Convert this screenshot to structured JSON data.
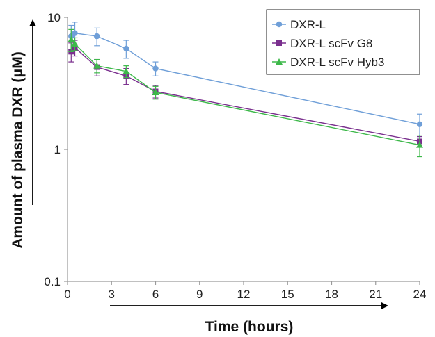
{
  "chart_data": {
    "type": "line",
    "xlabel": "Time (hours)",
    "ylabel": "Amount of plasma DXR (μM)",
    "y_scale": "log",
    "xlim": [
      0,
      24
    ],
    "ylim": [
      0.1,
      10
    ],
    "x_ticks": [
      0,
      3,
      6,
      9,
      12,
      15,
      18,
      21,
      24
    ],
    "x_tick_labels": [
      "0",
      "3",
      "6",
      "9",
      "12",
      "15",
      "18",
      "21",
      "24"
    ],
    "y_ticks": [
      0.1,
      1,
      10
    ],
    "y_tick_labels": [
      "0.1",
      "1",
      "10"
    ],
    "grid": false,
    "legend_position": "top-right",
    "series": [
      {
        "name": "DXR-L",
        "color": "#6f9fd8",
        "marker": "circle",
        "x": [
          0.25,
          0.5,
          2,
          4,
          6,
          24
        ],
        "y": [
          7.2,
          7.6,
          7.2,
          5.8,
          4.1,
          1.55
        ],
        "err": [
          1.5,
          1.6,
          1.1,
          0.9,
          0.5,
          0.3
        ]
      },
      {
        "name": "DXR-L scFv G8",
        "color": "#7a2f8e",
        "marker": "square",
        "x": [
          0.25,
          0.5,
          2,
          4,
          6,
          24
        ],
        "y": [
          5.5,
          5.9,
          4.2,
          3.6,
          2.75,
          1.15
        ],
        "err": [
          0.9,
          0.8,
          0.6,
          0.5,
          0.3,
          0.1
        ]
      },
      {
        "name": "DXR-L scFv Hyb3",
        "color": "#3db84a",
        "marker": "triangle",
        "x": [
          0.25,
          0.5,
          2,
          4,
          6,
          24
        ],
        "y": [
          6.8,
          6.3,
          4.3,
          3.9,
          2.7,
          1.08
        ],
        "err": [
          1.3,
          0.7,
          0.5,
          0.4,
          0.3,
          0.2
        ]
      }
    ]
  }
}
